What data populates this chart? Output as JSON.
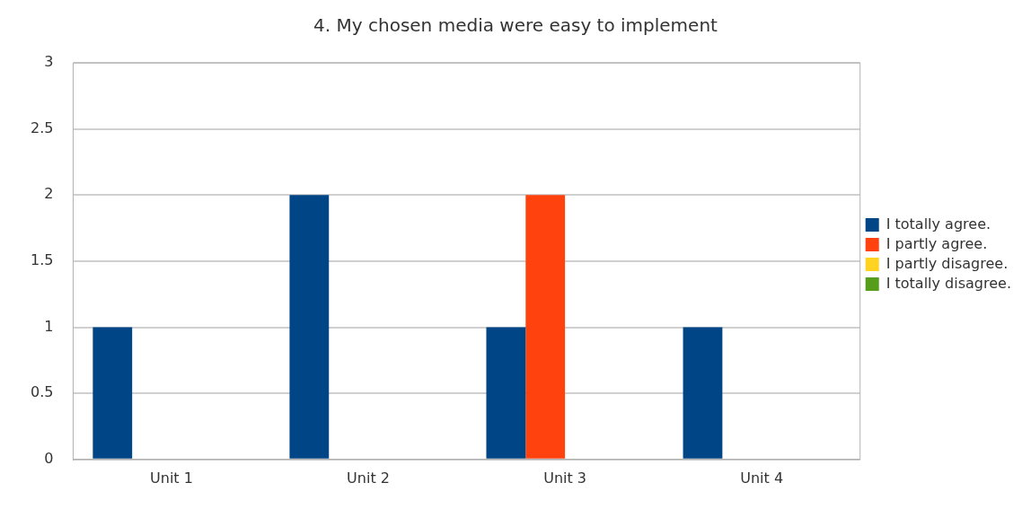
{
  "chart_data": {
    "type": "bar",
    "title": "4. My chosen media were easy to implement",
    "categories": [
      "Unit 1",
      "Unit 2",
      "Unit 3",
      "Unit 4"
    ],
    "series": [
      {
        "name": "I totally agree.",
        "color": "#004586",
        "values": [
          1,
          2,
          1,
          1
        ]
      },
      {
        "name": "I partly agree.",
        "color": "#ff420e",
        "values": [
          0,
          0,
          2,
          0
        ]
      },
      {
        "name": "I partly disagree.",
        "color": "#ffd320",
        "values": [
          0,
          0,
          0,
          0
        ]
      },
      {
        "name": "I totally disagree.",
        "color": "#579d1c",
        "values": [
          0,
          0,
          0,
          0
        ]
      }
    ],
    "ylim": [
      0,
      3
    ],
    "yticks": [
      0,
      0.5,
      1,
      1.5,
      2,
      2.5,
      3
    ],
    "grid": "y",
    "legend": "right"
  }
}
